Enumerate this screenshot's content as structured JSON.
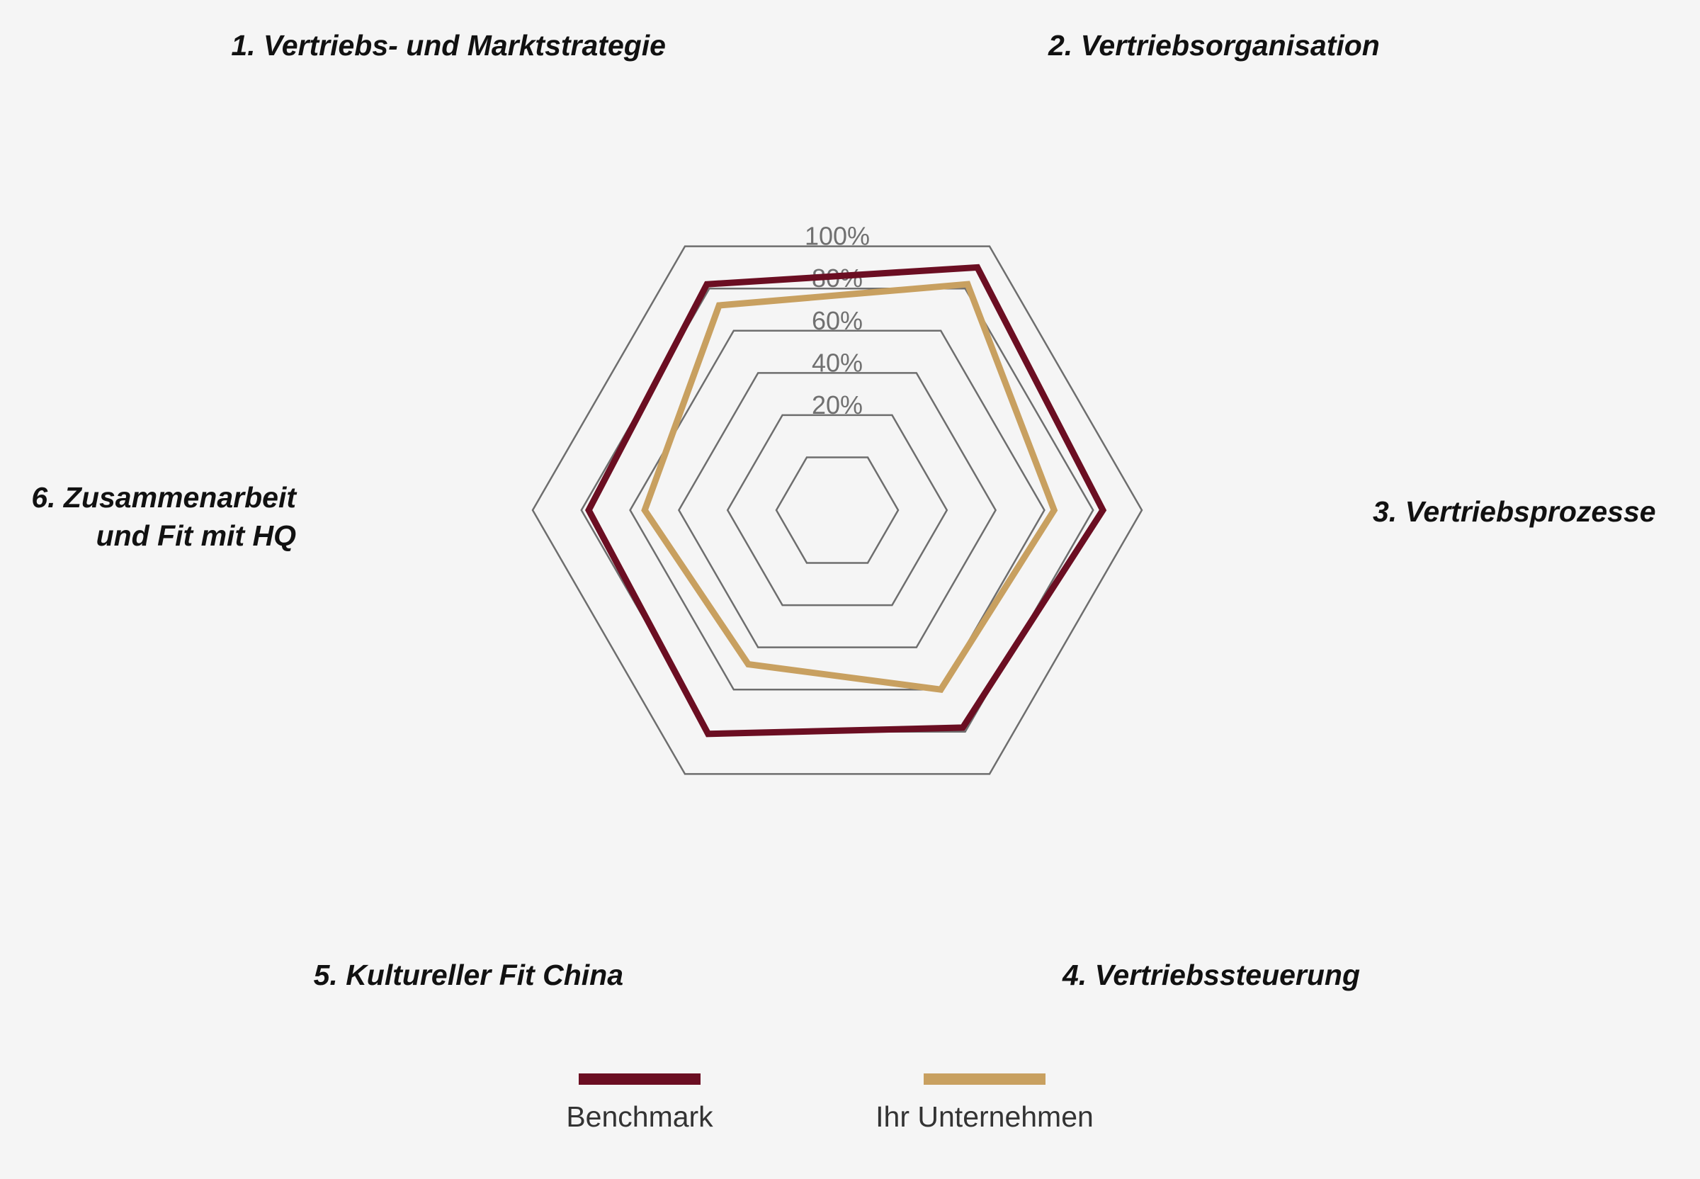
{
  "chart_data": {
    "type": "radar",
    "axes": [
      [
        "1. Vertriebs- und Marktstrategie"
      ],
      [
        "2. Vertriebsorganisation"
      ],
      [
        "3. Vertriebsprozesse"
      ],
      [
        "4. Vertriebssteuerung"
      ],
      [
        "5. Kultureller Fit China"
      ],
      [
        "6. Zusammenarbeit",
        "und Fit mit HQ"
      ]
    ],
    "ticks": [
      20,
      40,
      60,
      80,
      100
    ],
    "tick_labels": [
      "20%",
      "40%",
      "60%",
      "80%",
      "100%"
    ],
    "range": [
      0,
      100
    ],
    "grid_shape": "hexagon",
    "legend_position": "bottom",
    "series": [
      {
        "name": "Benchmark",
        "color": "#6b0e22",
        "values": [
          82,
          90,
          84,
          78,
          81,
          77
        ]
      },
      {
        "name": "Ihr Unternehmen",
        "color": "#c8a060",
        "values": [
          72,
          82,
          64,
          60,
          48,
          54
        ]
      }
    ],
    "grid_color": "#6e6e6e",
    "background": "#f5f5f5"
  }
}
